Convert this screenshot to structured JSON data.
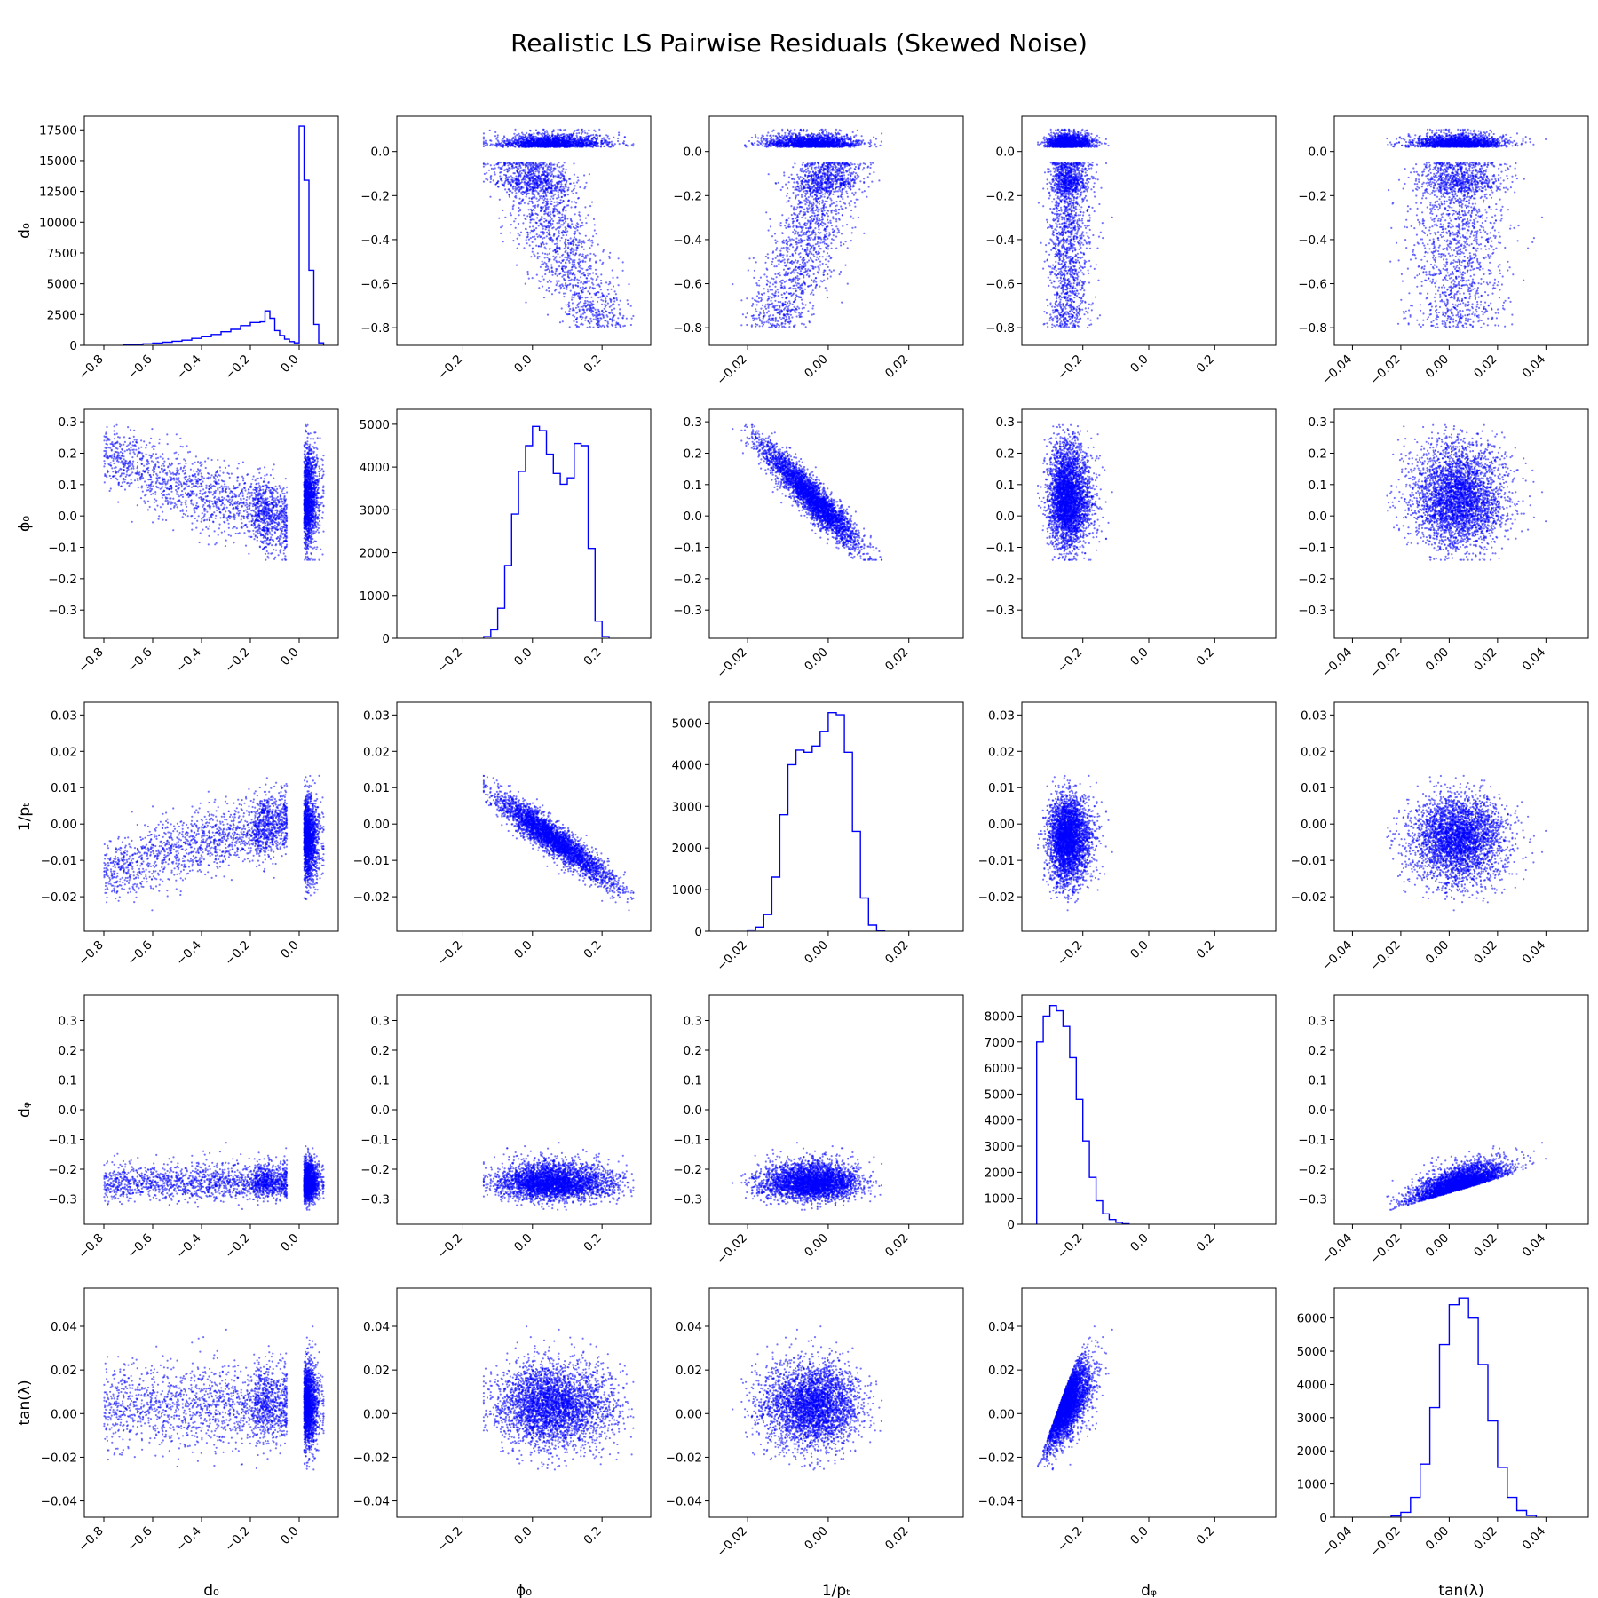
{
  "chart_data": {
    "type": "scatter",
    "title": "Realistic LS Pairwise Residuals (Skewed Noise)",
    "layout": "pair-plot",
    "color": "#0000ff",
    "variables": [
      {
        "key": "d0",
        "label": "d₀",
        "lim": [
          -0.88,
          0.16
        ],
        "ticks": [
          -0.8,
          -0.6,
          -0.4,
          -0.2,
          0.0
        ],
        "tick_labels": [
          "−0.8",
          "−0.6",
          "−0.4",
          "−0.2",
          "0.0"
        ]
      },
      {
        "key": "phi0",
        "label": "ϕ₀",
        "lim": [
          -0.39,
          0.34
        ],
        "ticks": [
          -0.3,
          -0.2,
          -0.1,
          0.0,
          0.1,
          0.2,
          0.3
        ],
        "tick_labels": [
          "−0.3",
          "−0.2",
          "−0.1",
          "0.0",
          "0.1",
          "0.2",
          "0.3"
        ]
      },
      {
        "key": "inv_pt",
        "label": "1/pₜ",
        "lim": [
          -0.0295,
          0.0335
        ],
        "ticks": [
          -0.02,
          -0.01,
          0.0,
          0.01,
          0.02,
          0.03
        ],
        "tick_labels": [
          "−0.02",
          "−0.01",
          "0.00",
          "0.01",
          "0.02",
          "0.03"
        ]
      },
      {
        "key": "dz",
        "label": "dᵩ",
        "lim": [
          -0.385,
          0.385
        ],
        "ticks": [
          -0.3,
          -0.2,
          -0.1,
          0.0,
          0.1,
          0.2,
          0.3
        ],
        "tick_labels": [
          "−0.3",
          "−0.2",
          "−0.1",
          "0.0",
          "0.1",
          "0.2",
          "0.3"
        ]
      },
      {
        "key": "tanl",
        "label": "tan(λ)",
        "lim": [
          -0.0475,
          0.0575
        ],
        "ticks": [
          -0.04,
          -0.02,
          0.0,
          0.02,
          0.04
        ],
        "tick_labels": [
          "−0.04",
          "−0.02",
          "0.00",
          "0.02",
          "0.04"
        ]
      }
    ],
    "x_tick_overrides": {
      "d0": {
        "ticks": [
          -0.8,
          -0.6,
          -0.4,
          -0.2,
          0.0
        ],
        "tick_labels": [
          "−0.8",
          "−0.6",
          "−0.4",
          "−0.2",
          "0.0"
        ]
      },
      "phi0": {
        "ticks": [
          -0.2,
          0.0,
          0.2
        ],
        "tick_labels": [
          "−0.2",
          "0.0",
          "0.2"
        ]
      },
      "inv_pt": {
        "ticks": [
          -0.02,
          0.0,
          0.02
        ],
        "tick_labels": [
          "−0.02",
          "0.00",
          "0.02"
        ]
      },
      "dz": {
        "ticks": [
          -0.2,
          0.0,
          0.2
        ],
        "tick_labels": [
          "−0.2",
          "0.0",
          "0.2"
        ]
      },
      "tanl": {
        "ticks": [
          -0.04,
          -0.02,
          0.0,
          0.02,
          0.04
        ],
        "tick_labels": [
          "−0.04",
          "−0.02",
          "0.00",
          "0.02",
          "0.04"
        ]
      }
    },
    "histograms": [
      {
        "var": "d0",
        "ylim": [
          0,
          18600
        ],
        "yticks": [
          0,
          2500,
          5000,
          7500,
          10000,
          12500,
          15000,
          17500
        ],
        "bin_edges": [
          -0.72,
          -0.68,
          -0.64,
          -0.6,
          -0.56,
          -0.52,
          -0.48,
          -0.44,
          -0.4,
          -0.36,
          -0.32,
          -0.28,
          -0.24,
          -0.2,
          -0.16,
          -0.14,
          -0.12,
          -0.1,
          -0.08,
          -0.06,
          -0.04,
          -0.02,
          0.0,
          0.02,
          0.04,
          0.06,
          0.08,
          0.1
        ],
        "counts": [
          50,
          80,
          120,
          180,
          250,
          330,
          420,
          560,
          700,
          880,
          1100,
          1300,
          1600,
          1850,
          1900,
          2800,
          2200,
          1200,
          800,
          500,
          300,
          200,
          17800,
          13400,
          6100,
          1700,
          200
        ]
      },
      {
        "var": "phi0",
        "ylim": [
          0,
          5350
        ],
        "yticks": [
          0,
          1000,
          2000,
          3000,
          4000,
          5000
        ],
        "bin_edges": [
          -0.14,
          -0.12,
          -0.1,
          -0.08,
          -0.06,
          -0.04,
          -0.02,
          0.0,
          0.02,
          0.04,
          0.06,
          0.08,
          0.1,
          0.12,
          0.14,
          0.16,
          0.18,
          0.2,
          0.22
        ],
        "counts": [
          40,
          200,
          700,
          1700,
          2900,
          3900,
          4500,
          4950,
          4850,
          4300,
          3850,
          3600,
          3750,
          4550,
          4500,
          2100,
          400,
          40
        ]
      },
      {
        "var": "inv_pt",
        "ylim": [
          0,
          5500
        ],
        "yticks": [
          0,
          1000,
          2000,
          3000,
          4000,
          5000
        ],
        "bin_edges": [
          -0.02,
          -0.018,
          -0.016,
          -0.014,
          -0.012,
          -0.01,
          -0.008,
          -0.006,
          -0.004,
          -0.002,
          0.0,
          0.002,
          0.004,
          0.006,
          0.008,
          0.01,
          0.012,
          0.014
        ],
        "counts": [
          30,
          100,
          400,
          1300,
          2800,
          4000,
          4350,
          4300,
          4450,
          4800,
          5250,
          5200,
          4300,
          2400,
          800,
          150,
          20
        ]
      },
      {
        "var": "dz",
        "ylim": [
          0,
          8800
        ],
        "yticks": [
          0,
          1000,
          2000,
          3000,
          4000,
          5000,
          6000,
          7000,
          8000
        ],
        "bin_edges": [
          -0.34,
          -0.32,
          -0.3,
          -0.28,
          -0.26,
          -0.24,
          -0.22,
          -0.2,
          -0.18,
          -0.16,
          -0.14,
          -0.12,
          -0.1,
          -0.08,
          -0.06
        ],
        "counts": [
          7000,
          8000,
          8400,
          8200,
          7600,
          6400,
          4800,
          3200,
          1800,
          900,
          400,
          180,
          70,
          20
        ]
      },
      {
        "var": "tanl",
        "ylim": [
          0,
          6900
        ],
        "yticks": [
          0,
          1000,
          2000,
          3000,
          4000,
          5000,
          6000
        ],
        "bin_edges": [
          -0.024,
          -0.02,
          -0.016,
          -0.012,
          -0.008,
          -0.004,
          0.0,
          0.004,
          0.008,
          0.012,
          0.016,
          0.02,
          0.024,
          0.028,
          0.032,
          0.036
        ],
        "counts": [
          40,
          150,
          600,
          1600,
          3300,
          5200,
          6400,
          6600,
          6000,
          4600,
          2900,
          1500,
          600,
          200,
          50
        ]
      }
    ]
  }
}
